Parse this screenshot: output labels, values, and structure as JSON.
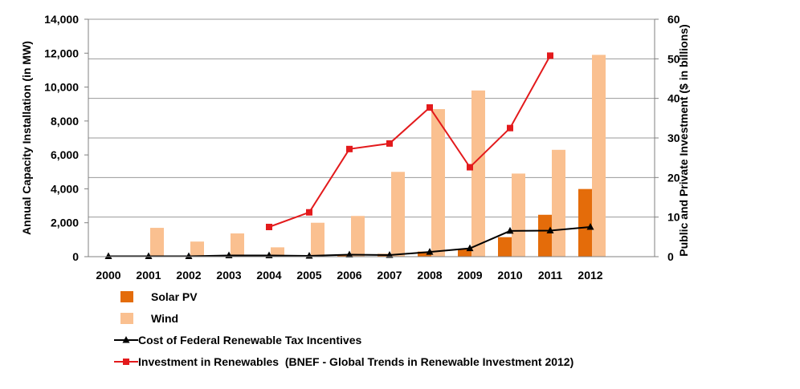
{
  "chart_data": {
    "type": "bar",
    "categories": [
      "2000",
      "2001",
      "2002",
      "2003",
      "2004",
      "2005",
      "2006",
      "2007",
      "2008",
      "2009",
      "2010",
      "2011",
      "2012"
    ],
    "ylabel": "Annual Capacity Installation (in MW)",
    "ylabel_right": "Public and Private Investment ($ in billions)",
    "ylim": [
      0,
      14000
    ],
    "ylim_right": [
      0,
      60
    ],
    "yticks": [
      "0",
      "2,000",
      "4,000",
      "6,000",
      "8,000",
      "10,000",
      "12,000",
      "14,000"
    ],
    "yticks_right": [
      "0",
      "10",
      "20",
      "30",
      "40",
      "50",
      "60"
    ],
    "grid": "horizontal",
    "legend_position": "bottom",
    "series": [
      {
        "name": "Solar PV",
        "kind": "bar",
        "axis": "left",
        "color": "#E46C0A",
        "values": [
          4,
          11,
          23,
          45,
          58,
          79,
          105,
          160,
          298,
          435,
          1150,
          2470,
          3990
        ]
      },
      {
        "name": "Wind",
        "kind": "bar",
        "axis": "left",
        "color": "#FAC090",
        "values": [
          67,
          1700,
          890,
          1370,
          550,
          2000,
          2400,
          5000,
          8700,
          9800,
          4900,
          6300,
          11900
        ]
      },
      {
        "name": "Cost of Federal Renewable Tax Incentives",
        "kind": "line",
        "axis": "right",
        "color": "#000000",
        "marker": "triangle",
        "values": [
          0.1,
          0.1,
          0.1,
          0.3,
          0.3,
          0.2,
          0.5,
          0.4,
          1.2,
          2.1,
          6.5,
          6.6,
          7.5
        ]
      },
      {
        "name": "Investment in Renewables  (BNEF - Global Trends in Renewable Investment 2012)",
        "kind": "line",
        "axis": "right",
        "color": "#E31A1C",
        "marker": "square",
        "values": [
          null,
          null,
          null,
          null,
          7.5,
          11.2,
          27.2,
          28.6,
          37.7,
          22.6,
          32.5,
          50.8,
          null
        ]
      }
    ]
  }
}
